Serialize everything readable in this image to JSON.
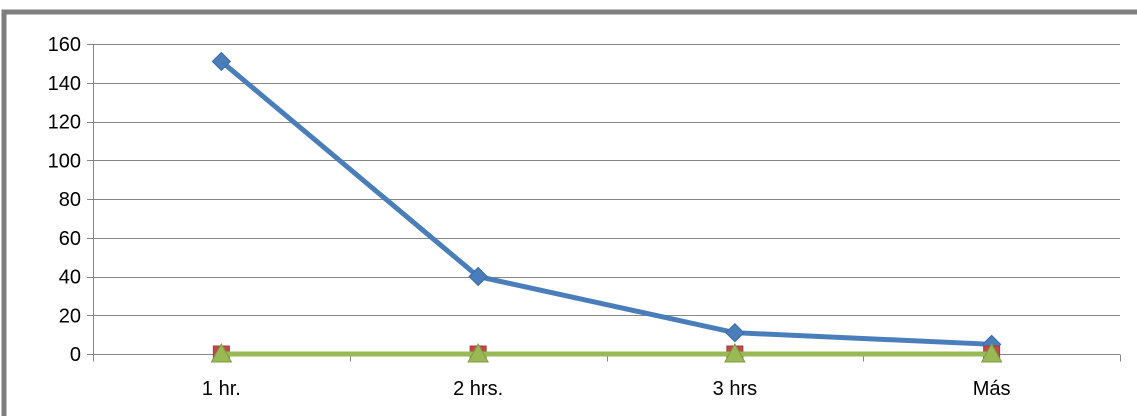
{
  "chart_data": {
    "type": "line",
    "title": "",
    "xlabel": "",
    "ylabel": "",
    "categories": [
      "1 hr.",
      "2 hrs.",
      "3 hrs",
      "Más"
    ],
    "ylim": [
      0,
      160
    ],
    "y_ticks": [
      0,
      20,
      40,
      60,
      80,
      100,
      120,
      140,
      160
    ],
    "grid": true,
    "legend": "none",
    "series": [
      {
        "values": [
          151,
          40,
          11,
          5
        ],
        "color": "#4a7ebb",
        "marker": "diamond"
      },
      {
        "values": [
          0,
          0,
          0,
          0
        ],
        "color": "#be4b48",
        "marker": "square"
      },
      {
        "values": [
          0,
          0,
          0,
          0
        ],
        "color": "#98b954",
        "marker": "triangle"
      }
    ],
    "colors": {
      "frame": "#7f7f7f",
      "gridline": "#868686",
      "axis": "#868686"
    }
  }
}
